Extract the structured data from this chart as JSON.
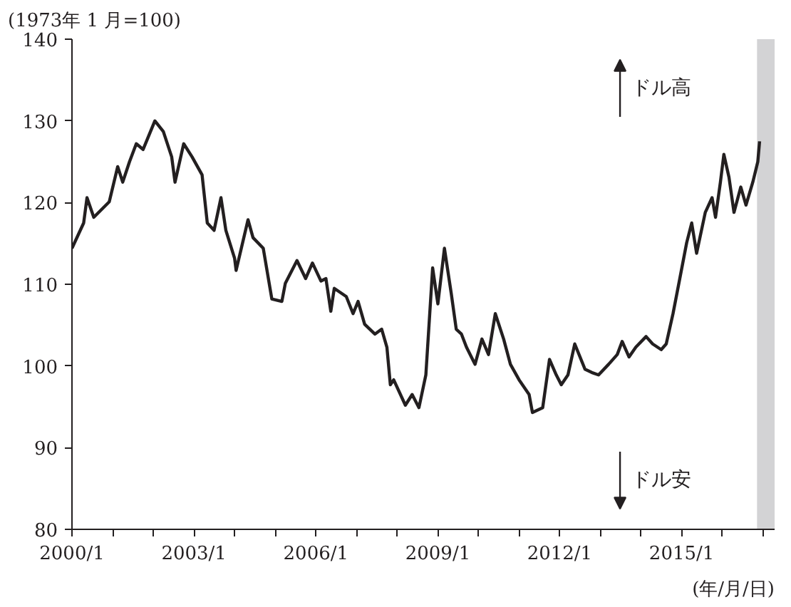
{
  "chart_data": {
    "type": "line",
    "ylabel": "(1973年 1 月=100)",
    "xlabel": "(年/月/日)",
    "annotations": [
      "ドル高",
      "ドル安"
    ],
    "x": [
      "2000-01-01",
      "2000-04-15",
      "2000-05-15",
      "2000-07-15",
      "2000-12-01",
      "2001-02-15",
      "2001-04-01",
      "2001-06-01",
      "2001-08-01",
      "2001-10-01",
      "2002-01-15",
      "2002-04-01",
      "2002-06-15",
      "2002-07-15",
      "2002-10-01",
      "2002-12-15",
      "2003-03-15",
      "2003-05-01",
      "2003-07-01",
      "2003-09-01",
      "2003-10-15",
      "2004-01-01",
      "2004-01-15",
      "2004-05-01",
      "2004-06-15",
      "2004-09-15",
      "2004-12-01",
      "2005-03-01",
      "2005-04-01",
      "2005-07-15",
      "2005-10-01",
      "2005-12-01",
      "2006-02-15",
      "2006-04-01",
      "2006-05-15",
      "2006-06-15",
      "2006-10-01",
      "2006-12-01",
      "2007-01-15",
      "2007-03-15",
      "2007-06-15",
      "2007-08-15",
      "2007-10-01",
      "2007-11-01",
      "2007-12-01",
      "2008-03-15",
      "2008-05-15",
      "2008-07-15",
      "2008-09-15",
      "2008-11-15",
      "2009-01-01",
      "2009-03-01",
      "2009-05-01",
      "2009-06-15",
      "2009-08-01",
      "2009-09-15",
      "2009-12-01",
      "2010-02-01",
      "2010-04-01",
      "2010-06-01",
      "2010-08-15",
      "2010-10-15",
      "2011-01-01",
      "2011-04-01",
      "2011-05-01",
      "2011-08-01",
      "2011-10-01",
      "2011-12-01",
      "2012-01-15",
      "2012-03-15",
      "2012-05-15",
      "2012-08-15",
      "2012-10-15",
      "2012-12-15",
      "2013-03-15",
      "2013-06-01",
      "2013-07-15",
      "2013-09-15",
      "2013-11-15",
      "2014-02-15",
      "2014-04-15",
      "2014-07-01",
      "2014-08-15",
      "2014-10-15",
      "2014-12-15",
      "2015-02-15",
      "2015-04-01",
      "2015-05-15",
      "2015-08-01",
      "2015-10-01",
      "2015-11-01",
      "2015-12-15",
      "2016-01-15",
      "2016-03-01",
      "2016-04-15",
      "2016-06-15",
      "2016-08-01",
      "2016-10-01",
      "2016-11-15",
      "2016-12-01"
    ],
    "series": [
      {
        "color": "#231f20",
        "values": [
          114.4,
          117.5,
          120.6,
          118.2,
          120.1,
          124.4,
          122.5,
          125.0,
          127.2,
          126.5,
          130.0,
          128.7,
          125.6,
          122.5,
          127.2,
          125.6,
          123.4,
          117.5,
          116.6,
          120.6,
          116.6,
          113.2,
          111.7,
          117.9,
          115.7,
          114.4,
          108.2,
          107.9,
          110.1,
          112.9,
          110.7,
          112.6,
          110.4,
          110.7,
          106.7,
          109.5,
          108.5,
          106.4,
          107.9,
          105.1,
          103.9,
          104.5,
          102.3,
          97.7,
          98.3,
          95.2,
          96.5,
          94.9,
          98.9,
          112.0,
          107.6,
          114.4,
          108.9,
          104.5,
          103.9,
          102.3,
          100.2,
          103.3,
          101.4,
          106.4,
          103.3,
          100.2,
          98.3,
          96.5,
          94.3,
          94.9,
          100.8,
          98.9,
          97.7,
          98.9,
          102.7,
          99.6,
          99.2,
          98.9,
          100.2,
          101.4,
          103.0,
          101.1,
          102.3,
          103.6,
          102.7,
          102.0,
          102.7,
          106.4,
          110.7,
          115.1,
          117.5,
          113.8,
          118.8,
          120.6,
          118.2,
          122.5,
          125.9,
          123.1,
          118.8,
          121.9,
          119.7,
          122.5,
          125.0,
          127.5
        ]
      }
    ],
    "xlim": [
      "2000-01-01",
      "2017-04-15"
    ],
    "xticks": [
      {
        "value": "2000-01-01",
        "label": "2000/1"
      },
      {
        "value": "2001-01-01",
        "label": null
      },
      {
        "value": "2002-01-01",
        "label": null
      },
      {
        "value": "2003-01-01",
        "label": "2003/1"
      },
      {
        "value": "2004-01-01",
        "label": null
      },
      {
        "value": "2005-01-01",
        "label": null
      },
      {
        "value": "2006-01-01",
        "label": "2006/1"
      },
      {
        "value": "2007-01-01",
        "label": null
      },
      {
        "value": "2008-01-01",
        "label": null
      },
      {
        "value": "2009-01-01",
        "label": "2009/1"
      },
      {
        "value": "2010-01-01",
        "label": null
      },
      {
        "value": "2011-01-01",
        "label": null
      },
      {
        "value": "2012-01-01",
        "label": "2012/1"
      },
      {
        "value": "2013-01-01",
        "label": null
      },
      {
        "value": "2014-01-01",
        "label": null
      },
      {
        "value": "2015-01-01",
        "label": "2015/1"
      },
      {
        "value": "2016-01-01",
        "label": null
      },
      {
        "value": "2017-01-01",
        "label": null
      }
    ],
    "ylim": [
      80,
      140
    ],
    "yticks": [
      80,
      90,
      100,
      110,
      120,
      130,
      140
    ],
    "bands": [
      {
        "axis": "x",
        "from": "2016-11-08",
        "to": "2017-04-15",
        "color": "#d3d3d5"
      }
    ],
    "grid": false,
    "line_style": "solid"
  }
}
